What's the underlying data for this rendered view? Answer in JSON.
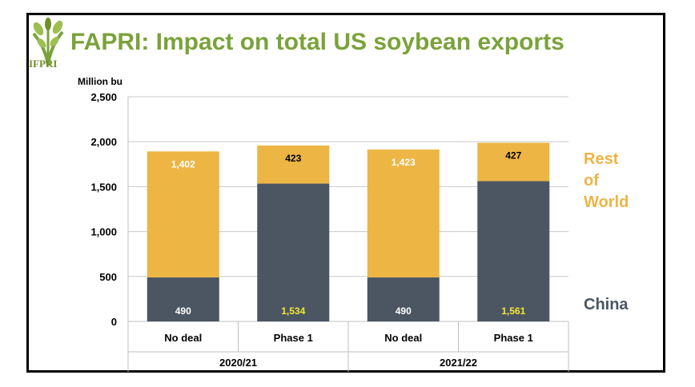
{
  "header": {
    "title": "FAPRI: Impact on total US soybean exports",
    "logo_text": "IFPRI"
  },
  "colors": {
    "title": "#7ba23a",
    "china": "#4b5662",
    "rest_of_world": "#ecb544",
    "highlight_label": "#f7e731"
  },
  "chart_data": {
    "type": "bar",
    "stacked": true,
    "ylabel": "Million bu",
    "ylim": [
      0,
      2500
    ],
    "yticks": [
      0,
      500,
      1000,
      1500,
      2000,
      2500
    ],
    "ytick_labels": [
      "0",
      "500",
      "1,000",
      "1,500",
      "2,000",
      "2,500"
    ],
    "categories": [
      "No deal",
      "Phase 1",
      "No deal",
      "Phase 1"
    ],
    "groups": [
      {
        "label": "2020/21",
        "span": [
          0,
          1
        ]
      },
      {
        "label": "2021/22",
        "span": [
          2,
          3
        ]
      }
    ],
    "series": [
      {
        "name": "China",
        "values": [
          490,
          1534,
          490,
          1561
        ],
        "labels": [
          "490",
          "1,534",
          "490",
          "1,561"
        ]
      },
      {
        "name": "Rest of World",
        "values": [
          1402,
          423,
          1423,
          427
        ],
        "labels": [
          "1,402",
          "423",
          "1,423",
          "427"
        ]
      }
    ],
    "legend": [
      "Rest of World",
      "China"
    ]
  }
}
